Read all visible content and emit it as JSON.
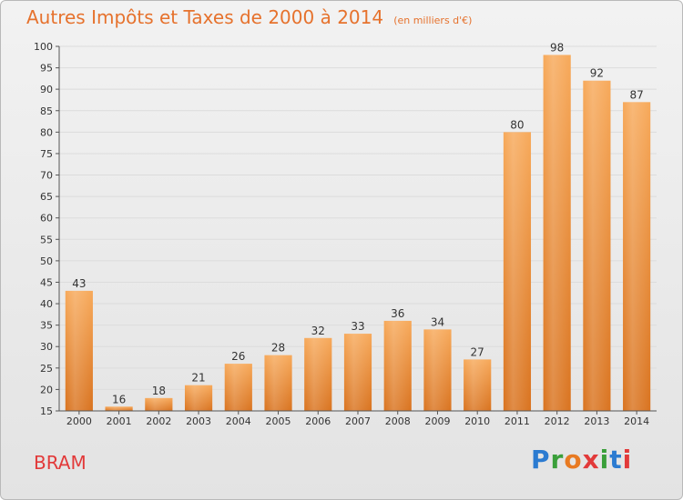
{
  "header": {
    "title": "Autres Impôts et Taxes de 2000 à 2014",
    "unit": "(en milliers d'€)"
  },
  "footer": {
    "commune": "BRAM",
    "logo_text": "Proxiti"
  },
  "colors": {
    "bar_light": "#f7a95a",
    "bar_dark": "#d9731f",
    "title": "#e6722d",
    "grid": "#dcdcdc"
  },
  "chart_data": {
    "type": "bar",
    "categories": [
      "2000",
      "2001",
      "2002",
      "2003",
      "2004",
      "2005",
      "2006",
      "2007",
      "2008",
      "2009",
      "2010",
      "2011",
      "2012",
      "2013",
      "2014"
    ],
    "values": [
      43,
      16,
      18,
      21,
      26,
      28,
      32,
      33,
      36,
      34,
      27,
      80,
      98,
      92,
      87
    ],
    "title": "Autres Impôts et Taxes de 2000 à 2014",
    "xlabel": "",
    "ylabel": "",
    "ylim": [
      15,
      100
    ],
    "yticks": [
      15,
      20,
      25,
      30,
      35,
      40,
      45,
      50,
      55,
      60,
      65,
      70,
      75,
      80,
      85,
      90,
      95,
      100
    ],
    "grid": true
  }
}
